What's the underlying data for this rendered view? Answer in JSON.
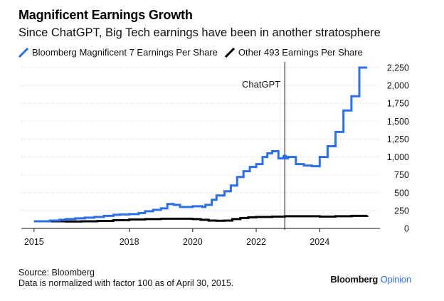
{
  "header": {
    "title": "Magnificent Earnings Growth",
    "subtitle": "Since ChatGPT, Big Tech earnings have been in another stratosphere"
  },
  "footer": {
    "source": "Source: Bloomberg",
    "note": "Data is normalized with factor 100 as of April 30, 2015.",
    "brand_main": "Bloomberg",
    "brand_accent": "Opinion"
  },
  "colors": {
    "mag7": "#2c6fe6",
    "other": "#000000",
    "grid": "#d6d6d6"
  },
  "chart_data": {
    "type": "line",
    "title": "Magnificent Earnings Growth",
    "subtitle": "Since ChatGPT, Big Tech earnings have been in another stratosphere",
    "xlabel": "",
    "ylabel": "",
    "xlim": [
      2014.6,
      2025.9
    ],
    "ylim": [
      0,
      2250
    ],
    "x_ticks": [
      2015,
      2018,
      2020,
      2022,
      2024
    ],
    "x_tick_labels": [
      "2015",
      "2018",
      "2020",
      "2022",
      "2024"
    ],
    "y_ticks": [
      0,
      250,
      500,
      750,
      1000,
      1250,
      1500,
      1750,
      2000,
      2250
    ],
    "y_tick_labels": [
      "0",
      "250",
      "500",
      "750",
      "1,000",
      "1,250",
      "1,500",
      "1,750",
      "2,000",
      "2,250"
    ],
    "grid": "horizontal",
    "legend_position": "top-left",
    "annotation": {
      "label": "ChatGPT",
      "x": 2022.9,
      "marker_y": 1000
    },
    "series": [
      {
        "name": "Bloomberg Magnificent 7 Earnings Per Share",
        "color": "#2c6fe6",
        "x": [
          2015.0,
          2015.5,
          2015.8,
          2016.0,
          2016.3,
          2016.6,
          2016.9,
          2017.2,
          2017.5,
          2017.7,
          2018.0,
          2018.3,
          2018.5,
          2018.75,
          2019.0,
          2019.2,
          2019.4,
          2019.6,
          2020.0,
          2020.3,
          2020.4,
          2020.6,
          2020.75,
          2021.0,
          2021.2,
          2021.4,
          2021.6,
          2021.8,
          2022.0,
          2022.2,
          2022.35,
          2022.5,
          2022.7,
          2023.0,
          2023.25,
          2023.5,
          2023.75,
          2024.0,
          2024.25,
          2024.5,
          2024.75,
          2025.0,
          2025.25,
          2025.5
        ],
        "y": [
          100,
          110,
          120,
          130,
          140,
          150,
          160,
          175,
          190,
          195,
          200,
          215,
          240,
          260,
          280,
          340,
          330,
          300,
          310,
          300,
          330,
          400,
          460,
          520,
          600,
          720,
          800,
          860,
          900,
          1000,
          1050,
          1080,
          980,
          1000,
          900,
          880,
          870,
          1000,
          1150,
          1350,
          1650,
          1850,
          2250,
          2250
        ]
      },
      {
        "name": "Other 493 Earnings Per Share",
        "color": "#000000",
        "x": [
          2015.0,
          2015.5,
          2016.0,
          2016.5,
          2017.0,
          2017.5,
          2018.0,
          2018.5,
          2019.0,
          2019.5,
          2020.0,
          2020.25,
          2020.5,
          2020.75,
          2021.0,
          2021.25,
          2021.5,
          2021.75,
          2022.0,
          2022.5,
          2022.9,
          2023.5,
          2024.0,
          2024.5,
          2025.0,
          2025.5
        ],
        "y": [
          100,
          100,
          98,
          100,
          105,
          115,
          125,
          130,
          135,
          135,
          130,
          120,
          110,
          108,
          110,
          130,
          145,
          155,
          160,
          165,
          170,
          170,
          165,
          170,
          175,
          180
        ]
      }
    ]
  }
}
